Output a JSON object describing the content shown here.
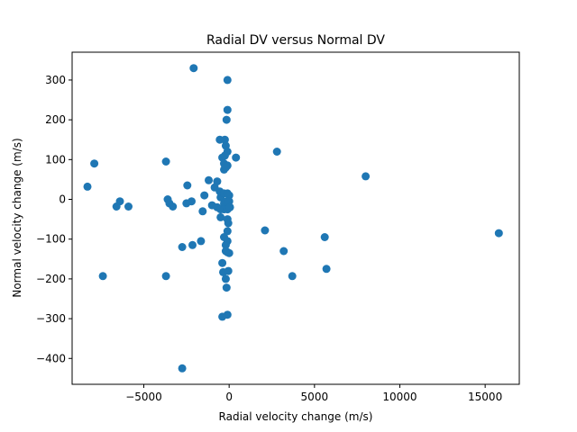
{
  "chart_data": {
    "type": "scatter",
    "title": "Radial DV versus Normal DV",
    "xlabel": "Radial velocity change (m/s)",
    "ylabel": "Normal velocity change (m/s)",
    "xlim": [
      -9200,
      17000
    ],
    "ylim": [
      -465,
      370
    ],
    "xticks": [
      -5000,
      0,
      5000,
      10000,
      15000
    ],
    "xtick_labels": [
      "−5000",
      "0",
      "5000",
      "10000",
      "15000"
    ],
    "yticks": [
      -400,
      -300,
      -200,
      -100,
      0,
      100,
      200,
      300
    ],
    "ytick_labels": [
      "−400",
      "−300",
      "−200",
      "−100",
      "0",
      "100",
      "200",
      "300"
    ],
    "grid": false,
    "marker_color": "#1f77b4",
    "points": [
      [
        -2080,
        330
      ],
      [
        -100,
        300
      ],
      [
        -100,
        225
      ],
      [
        -150,
        200
      ],
      [
        -550,
        150
      ],
      [
        -250,
        150
      ],
      [
        -200,
        135
      ],
      [
        -100,
        120
      ],
      [
        -400,
        105
      ],
      [
        -250,
        110
      ],
      [
        400,
        105
      ],
      [
        2800,
        120
      ],
      [
        -300,
        90
      ],
      [
        -100,
        85
      ],
      [
        -300,
        75
      ],
      [
        -200,
        80
      ],
      [
        -7900,
        90
      ],
      [
        -3700,
        95
      ],
      [
        8000,
        58
      ],
      [
        -8300,
        32
      ],
      [
        -1200,
        48
      ],
      [
        -2450,
        35
      ],
      [
        -700,
        45
      ],
      [
        -850,
        30
      ],
      [
        -550,
        20
      ],
      [
        -1450,
        10
      ],
      [
        -500,
        5
      ],
      [
        -300,
        15
      ],
      [
        -100,
        15
      ],
      [
        0,
        10
      ],
      [
        -3600,
        0
      ],
      [
        -6400,
        -5
      ],
      [
        -3500,
        -10
      ],
      [
        -2200,
        -5
      ],
      [
        -2500,
        -10
      ],
      [
        -3300,
        -18
      ],
      [
        -6600,
        -18
      ],
      [
        -5900,
        -18
      ],
      [
        -1000,
        -15
      ],
      [
        -700,
        -20
      ],
      [
        -300,
        -10
      ],
      [
        -150,
        -5
      ],
      [
        0,
        -5
      ],
      [
        -500,
        -25
      ],
      [
        -300,
        -25
      ],
      [
        -100,
        -25
      ],
      [
        50,
        -20
      ],
      [
        -1550,
        -30
      ],
      [
        -500,
        -45
      ],
      [
        -100,
        -50
      ],
      [
        -50,
        -60
      ],
      [
        -100,
        -80
      ],
      [
        2100,
        -78
      ],
      [
        -300,
        -95
      ],
      [
        -100,
        -105
      ],
      [
        -1650,
        -105
      ],
      [
        -200,
        -115
      ],
      [
        -2150,
        -115
      ],
      [
        -2750,
        -120
      ],
      [
        -200,
        -130
      ],
      [
        -100,
        -133
      ],
      [
        0,
        -135
      ],
      [
        3200,
        -130
      ],
      [
        5600,
        -95
      ],
      [
        15800,
        -85
      ],
      [
        5700,
        -175
      ],
      [
        -400,
        -160
      ],
      [
        -350,
        -183
      ],
      [
        -50,
        -180
      ],
      [
        -7400,
        -193
      ],
      [
        -3700,
        -193
      ],
      [
        3700,
        -193
      ],
      [
        -200,
        -200
      ],
      [
        -150,
        -222
      ],
      [
        -100,
        -290
      ],
      [
        -400,
        -295
      ],
      [
        -2750,
        -425
      ]
    ]
  }
}
